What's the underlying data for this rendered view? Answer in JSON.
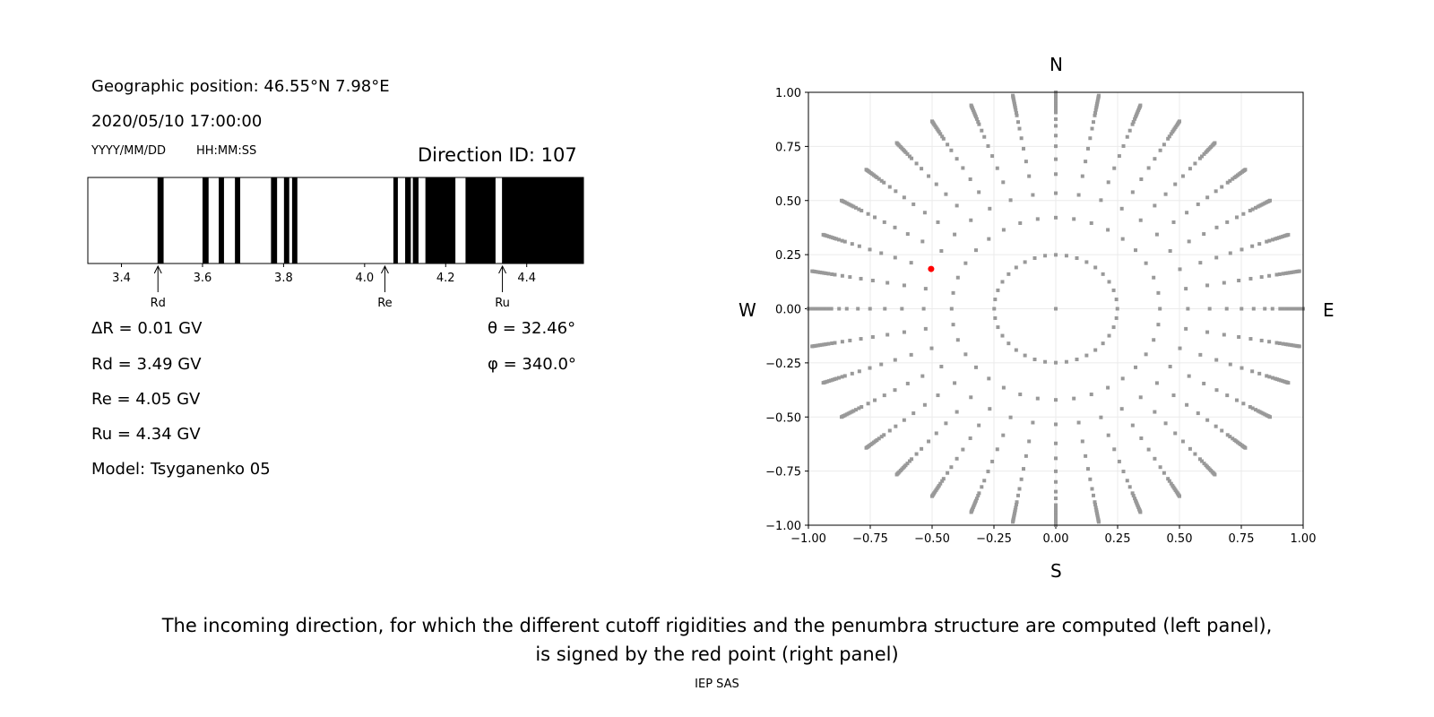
{
  "left_panel": {
    "geo_position": "Geographic position: 46.55°N 7.98°E",
    "datetime": "2020/05/10 17:00:00",
    "date_format": "YYYY/MM/DD",
    "time_format": "HH:MM:SS",
    "direction_id": "Direction ID: 107",
    "delta_r": "ΔR = 0.01 GV",
    "rd": "Rd = 3.49 GV",
    "re": "Re = 4.05 GV",
    "ru": "Ru = 4.34 GV",
    "model": "Model: Tsyganenko 05",
    "theta": "θ = 32.46°",
    "phi": "φ = 340.0°"
  },
  "compass": {
    "n": "N",
    "s": "S",
    "w": "W",
    "e": "E"
  },
  "caption": {
    "line1": "The incoming direction, for which the different cutoff rigidities and the penumbra structure are computed (left panel),",
    "line2": "is signed by the red point (right panel)",
    "credit": "IEP SAS"
  },
  "chart_data": [
    {
      "type": "penumbra-bar",
      "xlim": [
        3.317,
        4.54
      ],
      "xticks": [
        3.4,
        3.6,
        3.8,
        4.0,
        4.2,
        4.4
      ],
      "xtick_labels": [
        "3.4",
        "3.6",
        "3.8",
        "4.0",
        "4.2",
        "4.4"
      ],
      "forbidden_bands_gv": [
        [
          3.489,
          3.504
        ],
        [
          3.6,
          3.615
        ],
        [
          3.64,
          3.653
        ],
        [
          3.68,
          3.693
        ],
        [
          3.769,
          3.784
        ],
        [
          3.801,
          3.814
        ],
        [
          3.821,
          3.834
        ],
        [
          4.071,
          4.082
        ],
        [
          4.1,
          4.114
        ],
        [
          4.119,
          4.133
        ],
        [
          4.15,
          4.224
        ],
        [
          4.249,
          4.323
        ],
        [
          4.339,
          4.54
        ]
      ],
      "band_color": "#000000",
      "markers": [
        {
          "label": "Rd",
          "value": 3.49
        },
        {
          "label": "Re",
          "value": 4.05
        },
        {
          "label": "Ru",
          "value": 4.34
        }
      ]
    },
    {
      "type": "scatter",
      "xlim": [
        -1,
        1
      ],
      "ylim": [
        -1,
        1
      ],
      "xticks": [
        -1.0,
        -0.75,
        -0.5,
        -0.25,
        0.0,
        0.25,
        0.5,
        0.75,
        1.0
      ],
      "xtick_labels": [
        "−1.00",
        "−0.75",
        "−0.50",
        "−0.25",
        "0.00",
        "0.25",
        "0.50",
        "0.75",
        "1.00"
      ],
      "yticks": [
        -1.0,
        -0.75,
        -0.5,
        -0.25,
        0.0,
        0.25,
        0.5,
        0.75,
        1.0
      ],
      "ytick_labels": [
        "−1.00",
        "−0.75",
        "−0.50",
        "−0.25",
        "0.00",
        "0.25",
        "0.50",
        "0.75",
        "1.00"
      ],
      "grid": true,
      "point_color": "#999999",
      "azimuth_step_deg": 10,
      "center_point": true,
      "radii": [
        0.249,
        0.421,
        0.534,
        0.622,
        0.691,
        0.751,
        0.8,
        0.845,
        0.876,
        0.907,
        0.919,
        0.933,
        0.944,
        0.952,
        0.96,
        0.968,
        0.976,
        0.984,
        0.99,
        0.995,
        1.0
      ],
      "highlight": {
        "x": -0.504,
        "y": 0.184,
        "color": "#ff0000"
      }
    }
  ]
}
